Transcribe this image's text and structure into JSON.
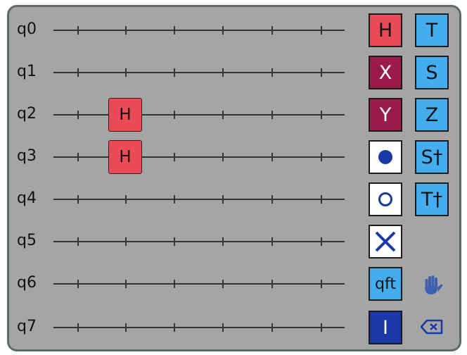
{
  "qubits": [
    "q0",
    "q1",
    "q2",
    "q3",
    "q4",
    "q5",
    "q6",
    "q7"
  ],
  "placed_gates": [
    {
      "qubit": "q2",
      "slot": 1,
      "label": "H"
    },
    {
      "qubit": "q3",
      "slot": 1,
      "label": "H"
    }
  ],
  "palette": {
    "h_label": "H",
    "x_label": "X",
    "y_label": "Y",
    "qft_label": "qft",
    "identity_label": "I",
    "t_label": "T",
    "s_label": "S",
    "z_label": "Z",
    "sdg_label": "S†",
    "tdg_label": "T†"
  },
  "toolbar": {
    "pan_icon": "hand-icon",
    "delete_icon": "backspace-icon"
  },
  "colors": {
    "panel_bg": "#a5a5a5",
    "frame_border": "#5f6a66",
    "h_gate": "#e94b57",
    "xy_gate": "#9b1b4a",
    "phase_gates": "#44adf0",
    "identity_gate": "#1a38a8",
    "control_marks": "#1a38a8"
  }
}
